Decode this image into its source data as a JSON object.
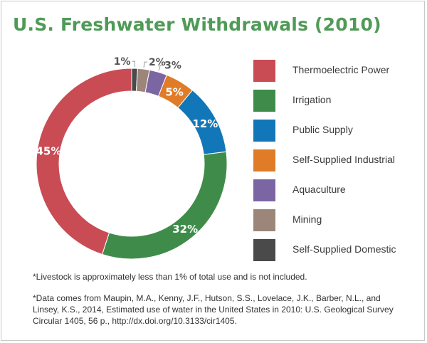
{
  "title": "U.S. Freshwater Withdrawals (2010)",
  "chart_data": {
    "type": "pie",
    "donut": true,
    "categories": [
      "Thermoelectric Power",
      "Irrigation",
      "Public Supply",
      "Self-Supplied Industrial",
      "Aquaculture",
      "Mining",
      "Self-Supplied Domestic"
    ],
    "values": [
      45,
      32,
      12,
      5,
      3,
      2,
      1
    ],
    "value_labels": [
      "45%",
      "32%",
      "12%",
      "5%",
      "3%",
      "2%",
      "1%"
    ],
    "colors": [
      "#c94c55",
      "#3f8c4a",
      "#1277b8",
      "#e07b27",
      "#7b66a3",
      "#9c8679",
      "#4a4a4a"
    ],
    "legend_position": "right"
  },
  "notes": {
    "livestock": "*Livestock is approximately less than 1% of total use and is not included.",
    "source_lines": [
      "*Data comes from Maupin, M.A., Kenny, J.F., Hutson, S.S., Lovelace, J.K., Barber, N.L., and",
      "Linsey, K.S., 2014, Estimated use of water in the United States in 2010: U.S. Geological Survey",
      "Circular 1405, 56 p., http://dx.doi.org/10.3133/cir1405."
    ]
  }
}
